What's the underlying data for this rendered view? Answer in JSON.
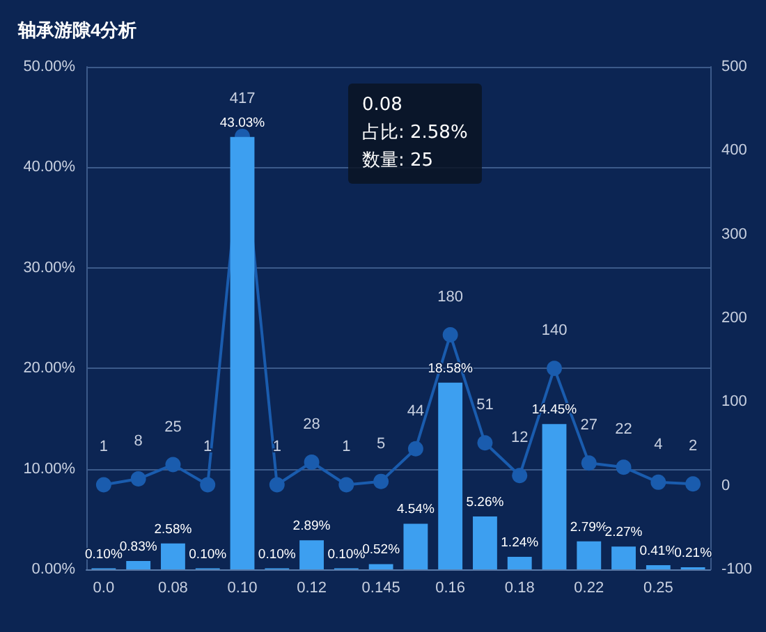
{
  "chart_data": {
    "type": "bar",
    "title": "轴承游隙4分析",
    "categories": [
      "0.0",
      null,
      "0.08",
      null,
      "0.10",
      null,
      "0.12",
      null,
      "0.145",
      null,
      "0.16",
      null,
      "0.18",
      null,
      "0.22",
      null,
      "0.25",
      null
    ],
    "series": [
      {
        "color": "#3d9ff0",
        "values": [
          0.1,
          0.83,
          2.58,
          0.1,
          43.03,
          0.1,
          2.89,
          0.1,
          0.52,
          4.54,
          18.58,
          5.26,
          1.24,
          14.45,
          2.79,
          2.27,
          0.41,
          0.21
        ],
        "value_labels": [
          "0.10%",
          "0.83%",
          "2.58%",
          "0.10%",
          "43.03%",
          "0.10%",
          "2.89%",
          "0.10%",
          "0.52%",
          "4.54%",
          "18.58%",
          "5.26%",
          "1.24%",
          "14.45%",
          "2.79%",
          "2.27%",
          "0.41%",
          "0.21%"
        ]
      },
      {
        "type": "line",
        "axis": "y2",
        "color": "#1a5cae",
        "marker": "circle",
        "values": [
          1,
          8,
          25,
          1,
          417,
          1,
          28,
          1,
          5,
          44,
          180,
          51,
          12,
          140,
          27,
          22,
          4,
          2
        ],
        "value_labels": [
          "1",
          "8",
          "25",
          "1",
          "417",
          "1",
          "28",
          "1",
          "5",
          "44",
          "180",
          "51",
          "12",
          "140",
          "27",
          "22",
          "4",
          "2"
        ]
      }
    ],
    "ylim": [
      0,
      50
    ],
    "yticks": [
      {
        "value": 0,
        "label": "0.00%"
      },
      {
        "value": 10,
        "label": "10.00%"
      },
      {
        "value": 20,
        "label": "20.00%"
      },
      {
        "value": 30,
        "label": "30.00%"
      },
      {
        "value": 40,
        "label": "40.00%"
      },
      {
        "value": 50,
        "label": "50.00%"
      }
    ],
    "y2lim": [
      -100,
      500
    ],
    "y2ticks": [
      -100,
      0,
      100,
      200,
      300,
      400,
      500
    ],
    "grid": "y",
    "annotations": [
      "0.08",
      "占比: 2.58%",
      "数量: 25"
    ]
  }
}
